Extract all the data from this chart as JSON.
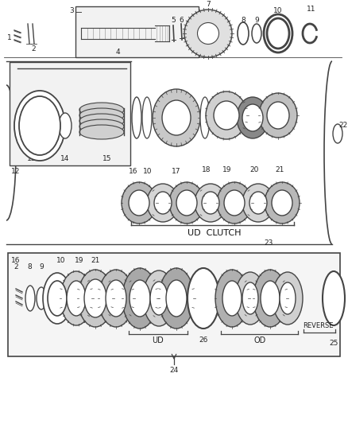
{
  "bg_color": "#ffffff",
  "lc": "#444444",
  "labels": {
    "ud_clutch": "UD  CLUTCH",
    "ud": "UD",
    "od": "OD",
    "reverse": "REVERSE"
  },
  "figw": 4.38,
  "figh": 5.33,
  "dpi": 100
}
